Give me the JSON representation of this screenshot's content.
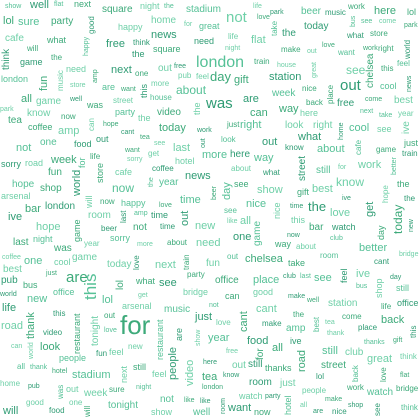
{
  "word_cloud": {
    "palette": [
      "#3daa7a",
      "#56c197",
      "#2f9c74",
      "#6fd0a8"
    ],
    "words": [
      "for",
      "london",
      "was",
      "are",
      "this",
      "not",
      "day",
      "about",
      "out",
      "know",
      "the",
      "see",
      "like",
      "now",
      "all",
      "will",
      "one",
      "can",
      "see",
      "today",
      "ive",
      "the",
      "cant",
      "love",
      "out",
      "here",
      "make",
      "take",
      "what",
      "still",
      "good",
      "lol",
      "new",
      "cool",
      "back",
      "time",
      "well",
      "work",
      "amp",
      "night",
      "home",
      "people",
      "need",
      "more",
      "just",
      "want",
      "sure",
      "think",
      "come",
      "look",
      "great",
      "happy",
      "watch",
      "get",
      "way",
      "year",
      "week",
      "best",
      "better",
      "last",
      "thank",
      "thanks",
      "hope",
      "right",
      "free",
      "show",
      "feel",
      "life",
      "world",
      "love",
      "music",
      "party",
      "game",
      "video",
      "news",
      "game",
      "fun",
      "next",
      "sorry",
      "nice",
      "tonight",
      "shop",
      "store",
      "gift",
      "office",
      "room",
      "place",
      "food",
      "beer",
      "cafe",
      "restaurant",
      "coffee",
      "tea",
      "pub",
      "bar",
      "station",
      "street",
      "house",
      "flat",
      "hotel",
      "chelsea",
      "arsenal",
      "stadium",
      "club",
      "park",
      "square",
      "bridge",
      "road",
      "train",
      "bus"
    ]
  }
}
